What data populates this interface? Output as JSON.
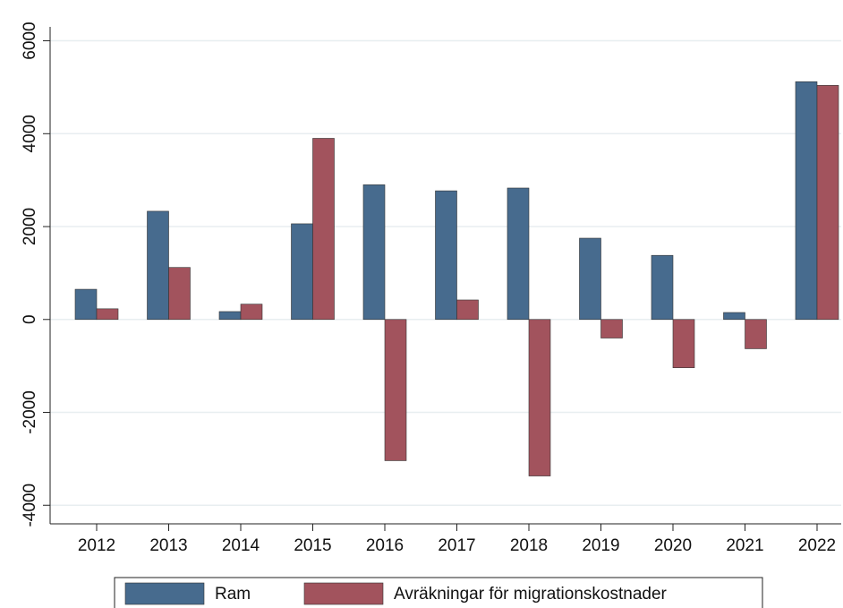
{
  "chart_data": {
    "type": "bar",
    "categories": [
      "2012",
      "2013",
      "2014",
      "2015",
      "2016",
      "2017",
      "2018",
      "2019",
      "2020",
      "2021",
      "2022"
    ],
    "series": [
      {
        "name": "Ram",
        "color": "#476b8e",
        "values": [
          650,
          2330,
          170,
          2060,
          2900,
          2770,
          2830,
          1750,
          1380,
          150,
          5120
        ]
      },
      {
        "name": "Avräkningar för migrationskostnader",
        "color": "#a2535d",
        "values": [
          230,
          1120,
          330,
          3900,
          -3040,
          420,
          -3370,
          -400,
          -1040,
          -630,
          5040
        ]
      }
    ],
    "ylim": [
      -4400,
      6300
    ],
    "yticks": [
      -4000,
      -2000,
      0,
      2000,
      4000,
      6000
    ],
    "grid": true,
    "legend": "bottom"
  }
}
